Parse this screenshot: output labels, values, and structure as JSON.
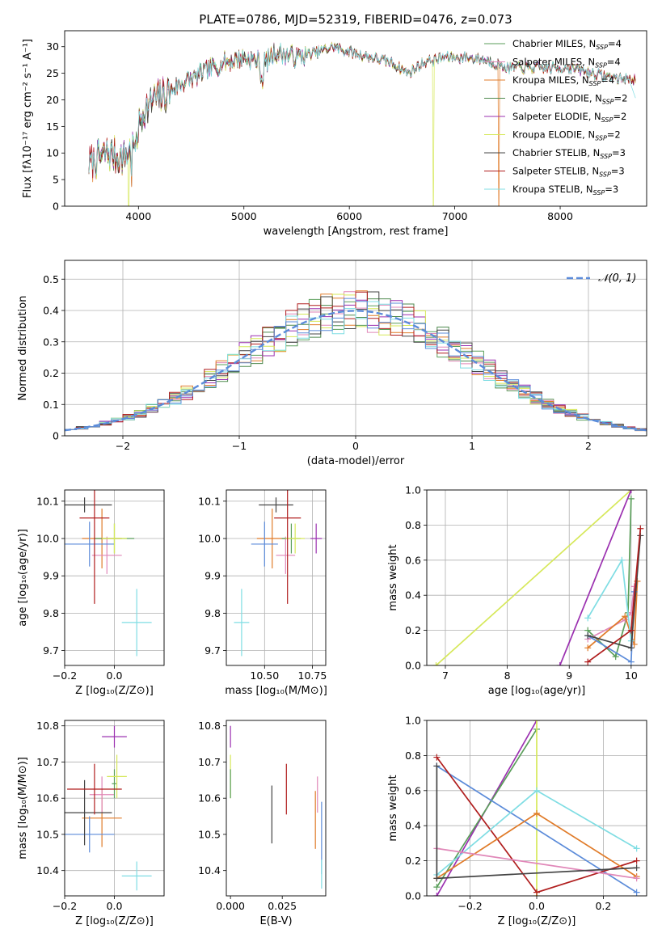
{
  "figure": {
    "title": "PLATE=0786, MJD=52319, FIBERID=0476, z=0.073"
  },
  "chart_data": [
    {
      "id": "spectrum",
      "type": "line",
      "xlabel": "wavelength [Angstrom, rest frame]",
      "ylabel": "Flux [fλ10⁻¹⁷ erg cm⁻² s⁻¹ A⁻¹]",
      "xlim": [
        3300,
        8820
      ],
      "ylim": [
        0,
        33
      ],
      "xticks": [
        4000,
        5000,
        6000,
        7000,
        8000
      ],
      "yticks": [
        0,
        5,
        10,
        15,
        20,
        25,
        30
      ],
      "grid": false,
      "legend_position": "top-right",
      "anchors": [
        [
          3550,
          8
        ],
        [
          3700,
          10
        ],
        [
          3850,
          9
        ],
        [
          3950,
          11
        ],
        [
          4050,
          18
        ],
        [
          4150,
          20
        ],
        [
          4250,
          21
        ],
        [
          4400,
          23
        ],
        [
          4600,
          25
        ],
        [
          4800,
          27
        ],
        [
          5000,
          28
        ],
        [
          5200,
          27
        ],
        [
          5300,
          29
        ],
        [
          5500,
          28
        ],
        [
          5700,
          29
        ],
        [
          5850,
          30
        ],
        [
          6000,
          29
        ],
        [
          6200,
          28
        ],
        [
          6400,
          27
        ],
        [
          6563,
          25
        ],
        [
          6700,
          27
        ],
        [
          6900,
          28
        ],
        [
          7100,
          28
        ],
        [
          7300,
          27.5
        ],
        [
          7500,
          26
        ],
        [
          7700,
          26
        ],
        [
          7900,
          26
        ],
        [
          8100,
          26
        ],
        [
          8300,
          25
        ],
        [
          8550,
          24
        ],
        [
          8700,
          24
        ]
      ],
      "series": [
        {
          "name": "Chabrier MILES, NSSP=4",
          "color": "#5a9e5a"
        },
        {
          "name": "Salpeter MILES, NSSP=4",
          "color": "#e087b8"
        },
        {
          "name": "Kroupa MILES, NSSP=4",
          "color": "#e07b29"
        },
        {
          "name": "Chabrier ELODIE, NSSP=2",
          "color": "#4f8a4f"
        },
        {
          "name": "Salpeter ELODIE, NSSP=2",
          "color": "#9b30b0"
        },
        {
          "name": "Kroupa ELODIE, NSSP=2",
          "color": "#d6e85a"
        },
        {
          "name": "Chabrier STELIB, NSSP=3",
          "color": "#444444"
        },
        {
          "name": "Salpeter STELIB, NSSP=3",
          "color": "#b01e1e"
        },
        {
          "name": "Kroupa STELIB, NSSP=3",
          "color": "#7fdde3"
        }
      ],
      "legend_labels": [
        {
          "base": "Chabrier MILES, N",
          "sub": "SSP",
          "tail": "=4"
        },
        {
          "base": "Salpeter MILES, N",
          "sub": "SSP",
          "tail": "=4"
        },
        {
          "base": "Kroupa MILES, N",
          "sub": "SSP",
          "tail": "=4"
        },
        {
          "base": "Chabrier ELODIE, N",
          "sub": "SSP",
          "tail": "=2"
        },
        {
          "base": "Salpeter ELODIE, N",
          "sub": "SSP",
          "tail": "=2"
        },
        {
          "base": "Kroupa ELODIE, N",
          "sub": "SSP",
          "tail": "=2"
        },
        {
          "base": "Chabrier STELIB, N",
          "sub": "SSP",
          "tail": "=3"
        },
        {
          "base": "Salpeter STELIB, N",
          "sub": "SSP",
          "tail": "=3"
        },
        {
          "base": "Kroupa STELIB, N",
          "sub": "SSP",
          "tail": "=3"
        }
      ]
    },
    {
      "id": "residuals",
      "type": "histogram",
      "xlabel": "(data-model)/error",
      "ylabel": "Normed distribution",
      "xlim": [
        -2.5,
        2.5
      ],
      "ylim": [
        0,
        0.56
      ],
      "xticks": [
        -2,
        -1,
        0,
        1,
        2
      ],
      "yticks": [
        0.0,
        0.1,
        0.2,
        0.3,
        0.4,
        0.5
      ],
      "grid": true,
      "legend_position": "top-right",
      "reference_curve": {
        "name": "𝒩(0, 1)",
        "color": "#5b8bd9",
        "style": "dashed"
      },
      "bins": {
        "start": -2.5,
        "width": 0.1
      }
    },
    {
      "id": "age_vs_Z",
      "type": "errorbar",
      "xlabel": "Z [log₁₀(Z/Z⊙)]",
      "ylabel": "age  [log₁₀(age/yr)]",
      "xlim": [
        -0.2,
        0.2
      ],
      "ylim": [
        9.66,
        10.13
      ],
      "xticks": [
        -0.2,
        0.0
      ],
      "yticks": [
        9.7,
        9.8,
        9.9,
        10.0,
        10.1
      ],
      "grid": true,
      "points": [
        {
          "x": -0.05,
          "y": 10.0,
          "xerr": 0.08,
          "yerr": 0.08,
          "color": "#e07b29"
        },
        {
          "x": -0.03,
          "y": 9.955,
          "xerr": 0.06,
          "yerr": 0.05,
          "color": "#e087b8"
        },
        {
          "x": -0.1,
          "y": 9.985,
          "xerr": 0.1,
          "yerr": 0.06,
          "color": "#5b8bd9"
        },
        {
          "x": 0.0,
          "y": 10.0,
          "xerr": 0.08,
          "yerr": 0.04,
          "color": "#5a9e5a"
        },
        {
          "x": 0.0,
          "y": 10.0,
          "xerr": 0.05,
          "yerr": 0.04,
          "color": "#d6e85a"
        },
        {
          "x": -0.12,
          "y": 10.09,
          "xerr": 0.11,
          "yerr": 0.02,
          "color": "#444444"
        },
        {
          "x": -0.08,
          "y": 10.055,
          "xerr": 0.06,
          "yerr": 0.23,
          "color": "#b01e1e"
        },
        {
          "x": 0.09,
          "y": 9.775,
          "xerr": 0.06,
          "yerr": 0.09,
          "color": "#7fdde3"
        }
      ]
    },
    {
      "id": "age_vs_mass",
      "type": "errorbar",
      "xlabel": "mass [log₁₀(M/M⊙)]",
      "ylabel": "",
      "xlim": [
        10.3,
        10.82
      ],
      "ylim": [
        9.66,
        10.13
      ],
      "xticks": [
        10.5,
        10.75
      ],
      "yticks": [
        9.7,
        9.8,
        9.9,
        10.0,
        10.1
      ],
      "grid": true,
      "points": [
        {
          "x": 10.54,
          "y": 10.0,
          "xerr": 0.08,
          "yerr": 0.08,
          "color": "#e07b29"
        },
        {
          "x": 10.61,
          "y": 9.955,
          "xerr": 0.05,
          "yerr": 0.05,
          "color": "#e087b8"
        },
        {
          "x": 10.5,
          "y": 9.985,
          "xerr": 0.07,
          "yerr": 0.06,
          "color": "#5b8bd9"
        },
        {
          "x": 10.64,
          "y": 10.0,
          "xerr": 0.05,
          "yerr": 0.04,
          "color": "#5a9e5a"
        },
        {
          "x": 10.66,
          "y": 10.0,
          "xerr": 0.05,
          "yerr": 0.04,
          "color": "#d6e85a"
        },
        {
          "x": 10.56,
          "y": 10.09,
          "xerr": 0.09,
          "yerr": 0.02,
          "color": "#444444"
        },
        {
          "x": 10.62,
          "y": 10.055,
          "xerr": 0.07,
          "yerr": 0.23,
          "color": "#b01e1e"
        },
        {
          "x": 10.77,
          "y": 10.0,
          "xerr": 0.03,
          "yerr": 0.04,
          "color": "#9b30b0"
        },
        {
          "x": 10.38,
          "y": 9.775,
          "xerr": 0.04,
          "yerr": 0.09,
          "color": "#7fdde3"
        }
      ]
    },
    {
      "id": "weight_vs_age",
      "type": "line",
      "xlabel": "age  [log₁₀(age/yr)]",
      "ylabel": "mass weight",
      "xlim": [
        6.7,
        10.25
      ],
      "ylim": [
        0,
        1
      ],
      "xticks": [
        7,
        8,
        9,
        10
      ],
      "yticks": [
        0.0,
        0.2,
        0.4,
        0.6,
        0.8,
        1.0
      ],
      "grid": true,
      "series": [
        {
          "color": "#d6e85a",
          "x": [
            6.85,
            10.0
          ],
          "y": [
            0.0,
            1.0
          ]
        },
        {
          "color": "#9b30b0",
          "x": [
            8.85,
            10.0
          ],
          "y": [
            0.0,
            1.0
          ]
        },
        {
          "color": "#5a9e5a",
          "x": [
            9.3,
            9.75,
            9.95,
            10.0
          ],
          "y": [
            0.2,
            0.05,
            0.3,
            0.95
          ]
        },
        {
          "color": "#e087b8",
          "x": [
            9.3,
            9.9,
            10.0,
            10.05
          ],
          "y": [
            0.15,
            0.26,
            0.3,
            0.45
          ]
        },
        {
          "color": "#e07b29",
          "x": [
            9.3,
            9.9,
            10.05,
            10.1
          ],
          "y": [
            0.1,
            0.28,
            0.12,
            0.48
          ]
        },
        {
          "color": "#5b8bd9",
          "x": [
            9.3,
            10.0,
            10.05
          ],
          "y": [
            0.17,
            0.02,
            0.42
          ]
        },
        {
          "color": "#7fdde3",
          "x": [
            9.3,
            9.85,
            10.0
          ],
          "y": [
            0.27,
            0.6,
            0.14
          ]
        },
        {
          "color": "#444444",
          "x": [
            9.3,
            10.0,
            10.15
          ],
          "y": [
            0.17,
            0.1,
            0.74
          ]
        },
        {
          "color": "#b01e1e",
          "x": [
            9.3,
            10.0,
            10.15
          ],
          "y": [
            0.02,
            0.2,
            0.78
          ]
        }
      ]
    },
    {
      "id": "mass_vs_Z",
      "type": "errorbar",
      "xlabel": "Z [log₁₀(Z/Z⊙)]",
      "ylabel": "mass [log₁₀(M/M⊙)]",
      "xlim": [
        -0.2,
        0.2
      ],
      "ylim": [
        10.33,
        10.815
      ],
      "xticks": [
        -0.2,
        0.0
      ],
      "yticks": [
        10.4,
        10.5,
        10.6,
        10.7,
        10.8
      ],
      "grid": true,
      "points": [
        {
          "x": -0.05,
          "y": 10.545,
          "xerr": 0.08,
          "yerr": 0.08,
          "color": "#e07b29"
        },
        {
          "x": -0.05,
          "y": 10.61,
          "xerr": 0.05,
          "yerr": 0.05,
          "color": "#e087b8"
        },
        {
          "x": -0.1,
          "y": 10.5,
          "xerr": 0.1,
          "yerr": 0.05,
          "color": "#5b8bd9"
        },
        {
          "x": 0.0,
          "y": 10.64,
          "xerr": 0.01,
          "yerr": 0.04,
          "color": "#5a9e5a"
        },
        {
          "x": 0.01,
          "y": 10.66,
          "xerr": 0.04,
          "yerr": 0.06,
          "color": "#d6e85a"
        },
        {
          "x": -0.12,
          "y": 10.56,
          "xerr": 0.11,
          "yerr": 0.09,
          "color": "#444444"
        },
        {
          "x": -0.08,
          "y": 10.625,
          "xerr": 0.11,
          "yerr": 0.07,
          "color": "#b01e1e"
        },
        {
          "x": 0.0,
          "y": 10.77,
          "xerr": 0.05,
          "yerr": 0.03,
          "color": "#9b30b0"
        },
        {
          "x": 0.09,
          "y": 10.385,
          "xerr": 0.06,
          "yerr": 0.04,
          "color": "#7fdde3"
        }
      ]
    },
    {
      "id": "mass_vs_ebv",
      "type": "errorbar",
      "xlabel": "E(B-V)",
      "ylabel": "",
      "xlim": [
        -0.002,
        0.046
      ],
      "ylim": [
        10.33,
        10.815
      ],
      "xticks": [
        0.0,
        0.025
      ],
      "yticks": [
        10.4,
        10.5,
        10.6,
        10.7,
        10.8
      ],
      "grid": false,
      "points": [
        {
          "x": 0.0,
          "y": 10.77,
          "xerr": 0,
          "yerr": 0.03,
          "color": "#9b30b0"
        },
        {
          "x": 0.0,
          "y": 10.66,
          "xerr": 0,
          "yerr": 0.06,
          "color": "#d6e85a"
        },
        {
          "x": 0.0,
          "y": 10.64,
          "xerr": 0,
          "yerr": 0.04,
          "color": "#5a9e5a"
        },
        {
          "x": 0.02,
          "y": 10.555,
          "xerr": 0,
          "yerr": 0.08,
          "color": "#444444"
        },
        {
          "x": 0.027,
          "y": 10.625,
          "xerr": 0,
          "yerr": 0.07,
          "color": "#b01e1e"
        },
        {
          "x": 0.041,
          "y": 10.54,
          "xerr": 0,
          "yerr": 0.08,
          "color": "#e07b29"
        },
        {
          "x": 0.042,
          "y": 10.61,
          "xerr": 0,
          "yerr": 0.05,
          "color": "#e087b8"
        },
        {
          "x": 0.044,
          "y": 10.49,
          "xerr": 0,
          "yerr": 0.1,
          "color": "#5b8bd9"
        },
        {
          "x": 0.044,
          "y": 10.39,
          "xerr": 0,
          "yerr": 0.04,
          "color": "#7fdde3"
        }
      ]
    },
    {
      "id": "weight_vs_Z",
      "type": "line",
      "xlabel": "Z [log₁₀(Z/Z⊙)]",
      "ylabel": "mass weight",
      "xlim": [
        -0.33,
        0.33
      ],
      "ylim": [
        0,
        1
      ],
      "xticks": [
        -0.2,
        0.0,
        0.2
      ],
      "yticks": [
        0.0,
        0.2,
        0.4,
        0.6,
        0.8,
        1.0
      ],
      "grid": true,
      "series": [
        {
          "color": "#9b30b0",
          "x": [
            -0.3,
            0.0
          ],
          "y": [
            0.0,
            1.0
          ]
        },
        {
          "color": "#5a9e5a",
          "x": [
            -0.3,
            0.0
          ],
          "y": [
            0.05,
            0.95
          ]
        },
        {
          "color": "#d6e85a",
          "x": [
            0.0,
            0.0
          ],
          "y": [
            0.0,
            1.0
          ]
        },
        {
          "color": "#5b8bd9",
          "x": [
            -0.3,
            0.3
          ],
          "y": [
            0.74,
            0.02
          ]
        },
        {
          "color": "#b01e1e",
          "x": [
            -0.3,
            0.0,
            0.3
          ],
          "y": [
            0.79,
            0.02,
            0.2
          ]
        },
        {
          "color": "#e07b29",
          "x": [
            -0.3,
            0.0,
            0.3
          ],
          "y": [
            0.1,
            0.47,
            0.11
          ]
        },
        {
          "color": "#7fdde3",
          "x": [
            -0.3,
            0.0,
            0.3
          ],
          "y": [
            0.12,
            0.6,
            0.27
          ]
        },
        {
          "color": "#e087b8",
          "x": [
            -0.3,
            0.3
          ],
          "y": [
            0.27,
            0.1
          ]
        },
        {
          "color": "#444444",
          "x": [
            -0.3,
            -0.3,
            0.3
          ],
          "y": [
            0.74,
            0.1,
            0.16
          ]
        }
      ]
    }
  ]
}
